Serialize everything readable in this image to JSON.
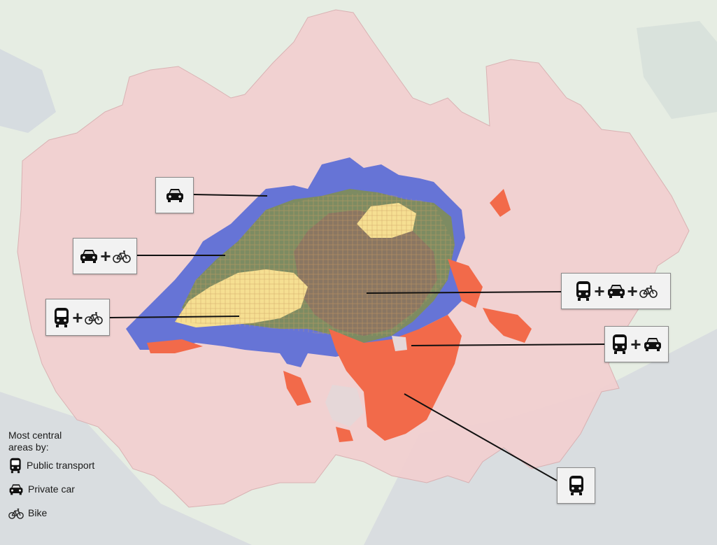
{
  "legend": {
    "heading": "Most central areas by:",
    "items": [
      {
        "icon": "bus-icon",
        "label": "Public transport"
      },
      {
        "icon": "car-icon",
        "label": "Private car"
      },
      {
        "icon": "bike-icon",
        "label": "Bike"
      }
    ]
  },
  "callouts": [
    {
      "name": "callout-car",
      "modes": [
        "car"
      ]
    },
    {
      "name": "callout-car-bike",
      "modes": [
        "car",
        "bike"
      ]
    },
    {
      "name": "callout-bus-bike",
      "modes": [
        "bus",
        "bike"
      ]
    },
    {
      "name": "callout-bus-car-bike",
      "modes": [
        "bus",
        "car",
        "bike"
      ]
    },
    {
      "name": "callout-bus-car",
      "modes": [
        "bus",
        "car"
      ]
    },
    {
      "name": "callout-bus",
      "modes": [
        "bus"
      ]
    }
  ],
  "plus_sign": "+",
  "colors": {
    "region_fill": "#f2cfd0",
    "car": "#5e6fd6",
    "bus": "#f26a4a",
    "bike_combo": "#f6df92",
    "car_bike": "#7d8b62",
    "all_three": "#8a7662",
    "water": "#d9dde0",
    "land": "#e6ede3"
  }
}
